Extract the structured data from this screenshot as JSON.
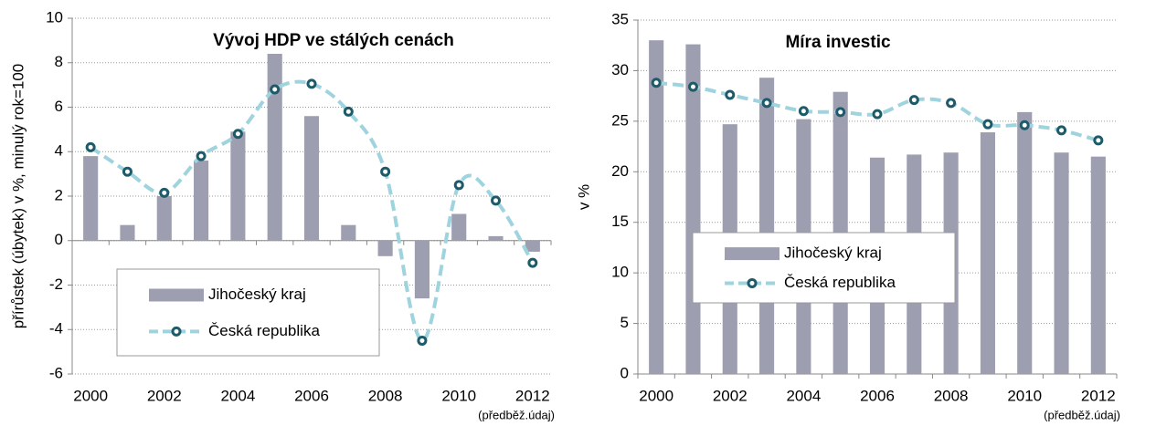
{
  "chart_data": [
    {
      "type": "bar-line",
      "title": "Vývoj HDP ve stálých cenách",
      "ylabel": "přírůstek (úbytek) v %,  minulý rok=100",
      "annotation": "(předběž.údaj)",
      "categories": [
        "2000",
        null,
        "2002",
        null,
        "2004",
        null,
        "2006",
        null,
        "2008",
        null,
        "2010",
        null,
        "2012"
      ],
      "series": [
        {
          "name": "Jihočeský kraj",
          "kind": "bar",
          "color": "#9d9fb1",
          "values": [
            3.8,
            0.7,
            2.0,
            3.6,
            4.9,
            8.4,
            5.6,
            0.7,
            -0.7,
            -2.6,
            1.2,
            0.2,
            -0.5
          ]
        },
        {
          "name": "Česká republika",
          "kind": "line",
          "color": "#9fd4de",
          "marker_color": "#1d5b6a",
          "values": [
            4.2,
            3.1,
            2.15,
            3.8,
            4.8,
            6.8,
            7.05,
            5.8,
            3.1,
            -4.5,
            2.5,
            1.8,
            -1.0
          ]
        }
      ],
      "ylim": [
        -6,
        10
      ],
      "yticks": [
        -6,
        -4,
        -2,
        0,
        2,
        4,
        6,
        8,
        10
      ],
      "grid": true
    },
    {
      "type": "bar-line",
      "title": "Míra investic",
      "ylabel": "v %",
      "annotation": "(předběž.údaj)",
      "categories": [
        "2000",
        null,
        "2002",
        null,
        "2004",
        null,
        "2006",
        null,
        "2008",
        null,
        "2010",
        null,
        "2012"
      ],
      "series": [
        {
          "name": "Jihočeský kraj",
          "kind": "bar",
          "color": "#9d9fb1",
          "values": [
            33.0,
            32.6,
            24.7,
            29.3,
            25.2,
            27.9,
            21.4,
            21.7,
            21.9,
            23.9,
            25.9,
            21.9,
            21.5
          ]
        },
        {
          "name": "Česká republika",
          "kind": "line",
          "color": "#9fd4de",
          "marker_color": "#1d5b6a",
          "values": [
            28.8,
            28.4,
            27.6,
            26.8,
            26.0,
            25.9,
            25.7,
            27.1,
            26.8,
            24.7,
            24.6,
            24.1,
            23.1
          ]
        }
      ],
      "ylim": [
        0,
        35
      ],
      "yticks": [
        0,
        5,
        10,
        15,
        20,
        25,
        30,
        35
      ],
      "grid": true
    }
  ]
}
